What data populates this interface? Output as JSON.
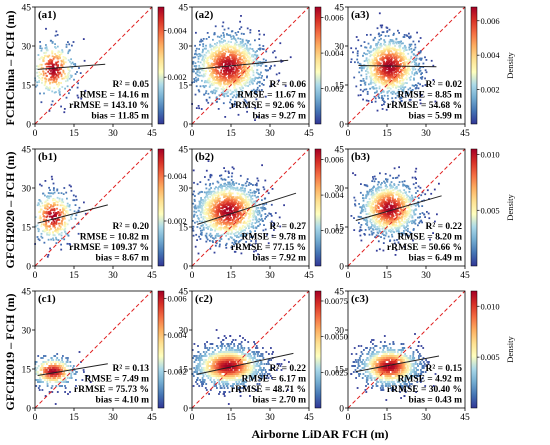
{
  "chart_data": {
    "type": "scatter",
    "xlabel": "Airborne LiDAR FCH (m)",
    "rows": [
      {
        "ylabel": "FCHChina – FCH (m)"
      },
      {
        "ylabel": "GFCH2020 – FCH (m)"
      },
      {
        "ylabel": "GFCH2019 – FCH (m)"
      }
    ],
    "xlim": [
      0,
      45
    ],
    "ylim": [
      0,
      45
    ],
    "x_ticks": [
      "0",
      "15",
      "30",
      "45"
    ],
    "y_ticks": [
      "0",
      "15",
      "30",
      "45"
    ],
    "reference_line": "1:1 line",
    "colorbar_label": "Density",
    "colormap": [
      "#313695",
      "#4575b4",
      "#74add1",
      "#abd9e9",
      "#ffffbf",
      "#fee090",
      "#fdae61",
      "#f46d43",
      "#d73027",
      "#a50026"
    ],
    "one_to_one_color": "#e02020",
    "fit_line_color": "#222222",
    "panels": [
      {
        "id": "a1",
        "label": "(a1)",
        "r2": "R² = 0.05",
        "rmse": "RMSE = 14.16 m",
        "rrmse": "rRMSE = 143.10 %",
        "bias": "bias = 11.85 m",
        "cloud": {
          "cx": 7,
          "cy": 21,
          "sx": 4.5,
          "sy": 5.5,
          "n": 380,
          "xmin": 0,
          "xmax": 30,
          "quant": 0
        },
        "fit": [
          [
            1,
            21
          ],
          [
            27,
            23
          ]
        ],
        "cb_max": 0.005,
        "cb_ticks": [
          "0.002",
          "0.004"
        ],
        "cb_tick_vals": [
          0.002,
          0.004
        ]
      },
      {
        "id": "a2",
        "label": "(a2)",
        "r2": "R² = 0.06",
        "rmse": "RMSE = 11.67 m",
        "rrmse": "rRMSE = 92.06 %",
        "bias": "bias = 9.27 m",
        "cloud": {
          "cx": 14,
          "cy": 22,
          "sx": 7,
          "sy": 6.5,
          "n": 1300,
          "xmin": 0,
          "xmax": 43,
          "quant": 0
        },
        "fit": [
          [
            1,
            21
          ],
          [
            37,
            24.5
          ]
        ],
        "cb_max": 0.0066,
        "cb_ticks": [
          "0.002",
          "0.004",
          "0.006"
        ],
        "cb_tick_vals": [
          0.002,
          0.004,
          0.006
        ]
      },
      {
        "id": "a3",
        "label": "(a3)",
        "r2": "R² = 0.02",
        "rmse": "RMSE = 8.85 m",
        "rrmse": "rRMSE = 54.68 %",
        "bias": "bias = 5.99 m",
        "cloud": {
          "cx": 16,
          "cy": 22,
          "sx": 6,
          "sy": 6,
          "n": 1100,
          "xmin": 1,
          "xmax": 38,
          "quant": 0
        },
        "fit": [
          [
            4,
            22.5
          ],
          [
            34,
            22
          ]
        ],
        "cb_max": 0.0068,
        "cb_ticks": [
          "0.002",
          "0.004",
          "0.006"
        ],
        "cb_tick_vals": [
          0.002,
          0.004,
          0.006
        ]
      },
      {
        "id": "b1",
        "label": "(b1)",
        "r2": "R² = 0.20",
        "rmse": "RMSE = 10.82 m",
        "rrmse": "rRMSE = 109.37 %",
        "bias": "bias = 8.67 m",
        "cloud": {
          "cx": 7,
          "cy": 19,
          "sx": 4.5,
          "sy": 5,
          "n": 380,
          "xmin": 0,
          "xmax": 30,
          "quant": 0
        },
        "fit": [
          [
            1,
            16.5
          ],
          [
            28,
            23.5
          ]
        ],
        "cb_max": 0.0052,
        "cb_ticks": [
          "0.002",
          "0.004"
        ],
        "cb_tick_vals": [
          0.002,
          0.004
        ]
      },
      {
        "id": "b2",
        "label": "(b2)",
        "r2": "R² = 0.27",
        "rmse": "RMSE = 9.78 m",
        "rrmse": "rRMSE = 77.15 %",
        "bias": "bias = 7.92 m",
        "cloud": {
          "cx": 14,
          "cy": 21,
          "sx": 7,
          "sy": 6,
          "n": 1300,
          "xmin": 0,
          "xmax": 43,
          "quant": 0
        },
        "fit": [
          [
            2,
            16
          ],
          [
            40,
            28
          ]
        ],
        "cb_max": 0.0066,
        "cb_ticks": [
          "0.002",
          "0.004",
          "0.006"
        ],
        "cb_tick_vals": [
          0.002,
          0.004,
          0.006
        ]
      },
      {
        "id": "b3",
        "label": "(b3)",
        "r2": "R² = 0.22",
        "rmse": "RMSE = 8.20 m",
        "rrmse": "rRMSE = 50.66 %",
        "bias": "bias = 6.49 m",
        "cloud": {
          "cx": 16,
          "cy": 22,
          "sx": 6,
          "sy": 5.5,
          "n": 1100,
          "xmin": 1,
          "xmax": 38,
          "quant": 0
        },
        "fit": [
          [
            3,
            17.5
          ],
          [
            36,
            27
          ]
        ],
        "cb_max": 0.0105,
        "cb_ticks": [
          "0.005",
          "0.010"
        ],
        "cb_tick_vals": [
          0.005,
          0.01
        ]
      },
      {
        "id": "c1",
        "label": "(c1)",
        "r2": "R² = 0.13",
        "rmse": "RMSE = 7.49 m",
        "rrmse": "rRMSE = 75.73 %",
        "bias": "bias = 4.10 m",
        "cloud": {
          "cx": 7,
          "cy": 14,
          "sx": 4.5,
          "sy": 3,
          "n": 380,
          "xmin": 0,
          "xmax": 30,
          "quant": 1
        },
        "fit": [
          [
            1,
            12.5
          ],
          [
            28,
            17
          ]
        ],
        "cb_max": 0.0064,
        "cb_ticks": [
          "0.002",
          "0.004",
          "0.006"
        ],
        "cb_tick_vals": [
          0.002,
          0.004,
          0.006
        ]
      },
      {
        "id": "c2",
        "label": "(c2)",
        "r2": "R² = 0.22",
        "rmse": "RMSE = 6.17 m",
        "rrmse": "rRMSE = 48.71 %",
        "bias": "bias = 2.70 m",
        "cloud": {
          "cx": 14,
          "cy": 16,
          "sx": 7,
          "sy": 4,
          "n": 1300,
          "xmin": 0,
          "xmax": 43,
          "quant": 1
        },
        "fit": [
          [
            2,
            13
          ],
          [
            39,
            21
          ]
        ],
        "cb_max": 0.0082,
        "cb_ticks": [
          "0.0025",
          "0.0050",
          "0.0075"
        ],
        "cb_tick_vals": [
          0.0025,
          0.005,
          0.0075
        ]
      },
      {
        "id": "c3",
        "label": "(c3)",
        "r2": "R² = 0.15",
        "rmse": "RMSE = 4.92 m",
        "rrmse": "rRMSE = 30.40 %",
        "bias": "bias = 0.43 m",
        "cloud": {
          "cx": 16,
          "cy": 16,
          "sx": 6,
          "sy": 4,
          "n": 1100,
          "xmin": 1,
          "xmax": 38,
          "quant": 1
        },
        "fit": [
          [
            3,
            14
          ],
          [
            35,
            20
          ]
        ],
        "cb_max": 0.0115,
        "cb_ticks": [
          "0.005",
          "0.010"
        ],
        "cb_tick_vals": [
          0.005,
          0.01
        ]
      }
    ]
  }
}
